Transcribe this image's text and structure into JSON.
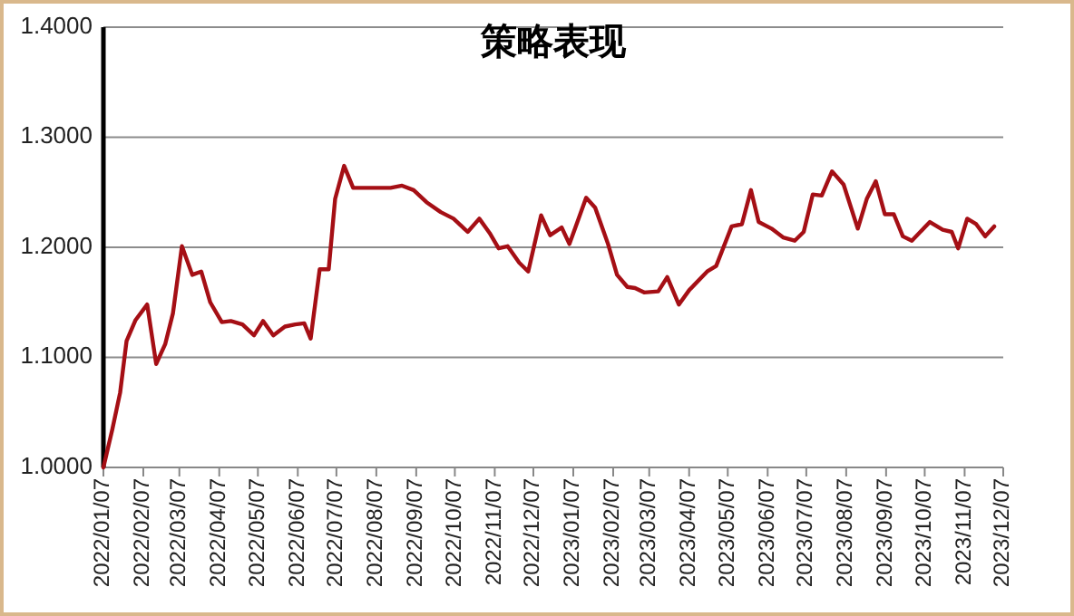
{
  "chart_data": {
    "type": "line",
    "title": "策略表现",
    "x": [
      "2022-01-07",
      "2022-01-14",
      "2022-01-20",
      "2022-01-25",
      "2022-02-01",
      "2022-02-10",
      "2022-02-17",
      "2022-02-24",
      "2022-03-02",
      "2022-03-09",
      "2022-03-17",
      "2022-03-24",
      "2022-03-31",
      "2022-04-09",
      "2022-04-16",
      "2022-04-25",
      "2022-05-04",
      "2022-05-11",
      "2022-05-19",
      "2022-05-28",
      "2022-06-05",
      "2022-06-12",
      "2022-06-17",
      "2022-06-24",
      "2022-07-01",
      "2022-07-06",
      "2022-07-13",
      "2022-07-20",
      "2022-08-04",
      "2022-08-18",
      "2022-08-27",
      "2022-09-05",
      "2022-09-15",
      "2022-09-26",
      "2022-10-06",
      "2022-10-17",
      "2022-10-26",
      "2022-11-03",
      "2022-11-10",
      "2022-11-17",
      "2022-11-26",
      "2022-12-03",
      "2022-12-13",
      "2022-12-20",
      "2022-12-29",
      "2023-01-04",
      "2023-01-17",
      "2023-01-24",
      "2023-02-03",
      "2023-02-10",
      "2023-02-18",
      "2023-02-24",
      "2023-03-03",
      "2023-03-14",
      "2023-03-21",
      "2023-03-30",
      "2023-04-07",
      "2023-04-21",
      "2023-04-28",
      "2023-05-10",
      "2023-05-18",
      "2023-05-25",
      "2023-05-31",
      "2023-06-10",
      "2023-06-19",
      "2023-06-28",
      "2023-07-05",
      "2023-07-12",
      "2023-07-19",
      "2023-07-27",
      "2023-08-05",
      "2023-08-16",
      "2023-08-23",
      "2023-08-30",
      "2023-09-06",
      "2023-09-13",
      "2023-09-20",
      "2023-09-27",
      "2023-10-11",
      "2023-10-21",
      "2023-10-28",
      "2023-11-02",
      "2023-11-09",
      "2023-11-16",
      "2023-11-23",
      "2023-11-30"
    ],
    "series": [
      {
        "color": "#a50f15",
        "values": [
          1.0,
          1.035,
          1.068,
          1.115,
          1.134,
          1.148,
          1.094,
          1.112,
          1.14,
          1.201,
          1.175,
          1.178,
          1.15,
          1.132,
          1.133,
          1.13,
          1.12,
          1.133,
          1.12,
          1.128,
          1.13,
          1.131,
          1.117,
          1.18,
          1.18,
          1.244,
          1.274,
          1.254,
          1.254,
          1.254,
          1.256,
          1.252,
          1.241,
          1.232,
          1.226,
          1.214,
          1.226,
          1.213,
          1.199,
          1.201,
          1.186,
          1.178,
          1.229,
          1.211,
          1.218,
          1.203,
          1.245,
          1.236,
          1.203,
          1.175,
          1.164,
          1.163,
          1.159,
          1.16,
          1.173,
          1.148,
          1.161,
          1.178,
          1.183,
          1.219,
          1.221,
          1.252,
          1.223,
          1.217,
          1.209,
          1.206,
          1.214,
          1.248,
          1.247,
          1.269,
          1.257,
          1.217,
          1.244,
          1.26,
          1.23,
          1.23,
          1.21,
          1.206,
          1.223,
          1.216,
          1.214,
          1.199,
          1.226,
          1.221,
          1.21,
          1.219
        ]
      }
    ],
    "xlim": [
      "2022-01-07",
      "2023-12-07"
    ],
    "xticks": [
      {
        "value": "2022-01-07",
        "label": "2022/01/07"
      },
      {
        "value": "2022-02-07",
        "label": "2022/02/07"
      },
      {
        "value": "2022-03-07",
        "label": "2022/03/07"
      },
      {
        "value": "2022-04-07",
        "label": "2022/04/07"
      },
      {
        "value": "2022-05-07",
        "label": "2022/05/07"
      },
      {
        "value": "2022-06-07",
        "label": "2022/06/07"
      },
      {
        "value": "2022-07-07",
        "label": "2022/07/07"
      },
      {
        "value": "2022-08-07",
        "label": "2022/08/07"
      },
      {
        "value": "2022-09-07",
        "label": "2022/09/07"
      },
      {
        "value": "2022-10-07",
        "label": "2022/10/07"
      },
      {
        "value": "2022-11-07",
        "label": "2022/11/07"
      },
      {
        "value": "2022-12-07",
        "label": "2022/12/07"
      },
      {
        "value": "2023-01-07",
        "label": "2023/01/07"
      },
      {
        "value": "2023-02-07",
        "label": "2023/02/07"
      },
      {
        "value": "2023-03-07",
        "label": "2023/03/07"
      },
      {
        "value": "2023-04-07",
        "label": "2023/04/07"
      },
      {
        "value": "2023-05-07",
        "label": "2023/05/07"
      },
      {
        "value": "2023-06-07",
        "label": "2023/06/07"
      },
      {
        "value": "2023-07-07",
        "label": "2023/07/07"
      },
      {
        "value": "2023-08-07",
        "label": "2023/08/07"
      },
      {
        "value": "2023-09-07",
        "label": "2023/09/07"
      },
      {
        "value": "2023-10-07",
        "label": "2023/10/07"
      },
      {
        "value": "2023-11-07",
        "label": "2023/11/07"
      },
      {
        "value": "2023-12-07",
        "label": "2023/12/07"
      }
    ],
    "ylim": [
      1.0,
      1.4
    ],
    "yticks": [
      {
        "value": 1.0,
        "label": "1.0000"
      },
      {
        "value": 1.1,
        "label": "1.1000"
      },
      {
        "value": 1.2,
        "label": "1.2000"
      },
      {
        "value": 1.3,
        "label": "1.3000"
      },
      {
        "value": 1.4,
        "label": "1.4000"
      }
    ],
    "grid": "y",
    "line_style": "solid"
  }
}
